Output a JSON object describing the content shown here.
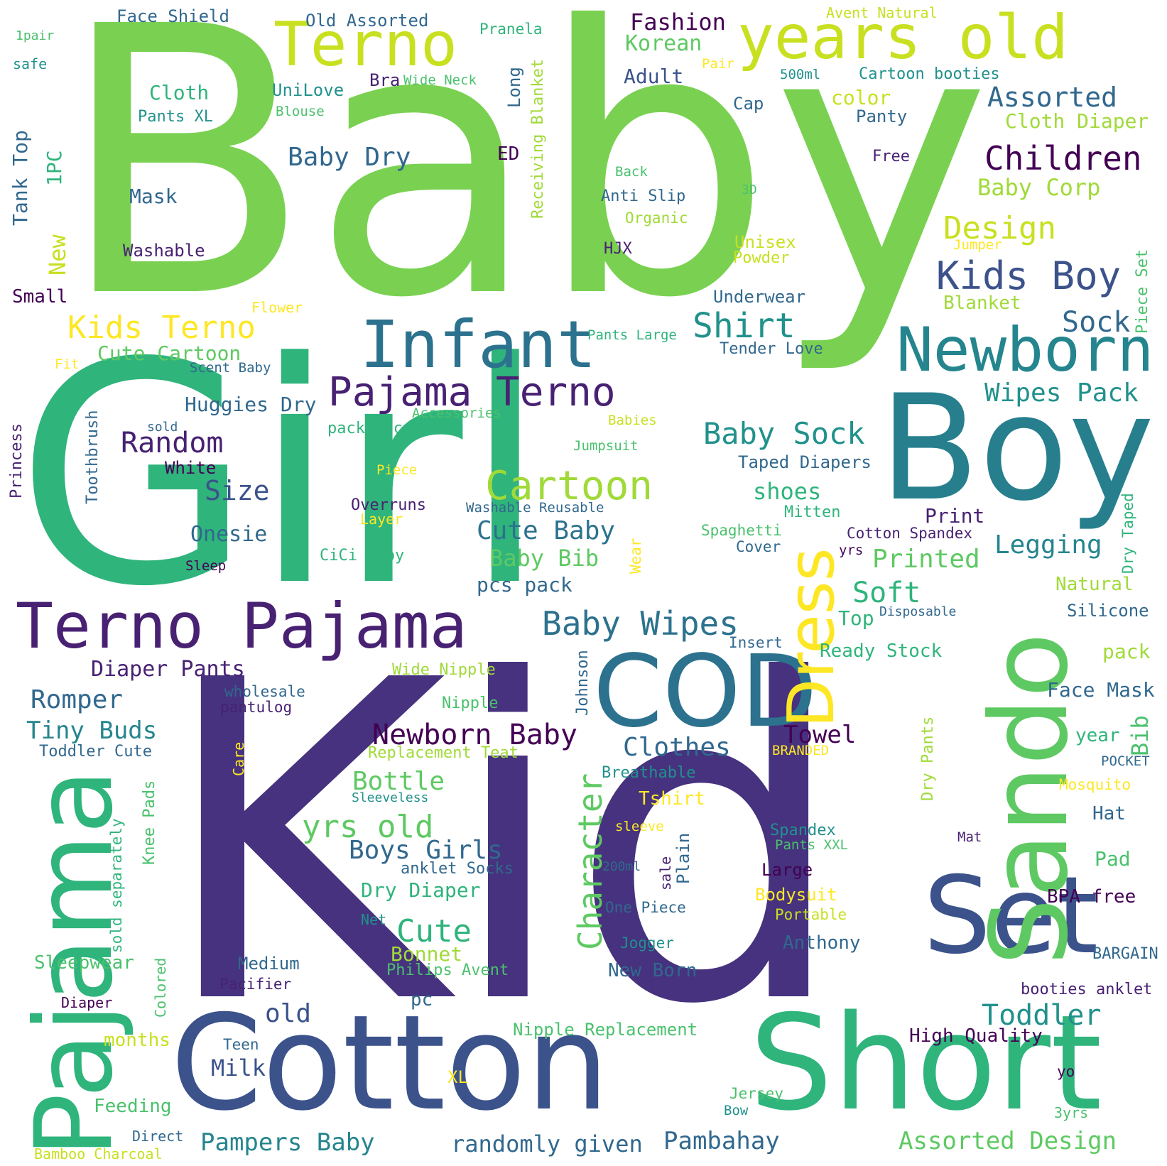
{
  "palette": {
    "purple": "#440154",
    "indigo": "#46327e",
    "blue": "#365c8d",
    "teal": "#277f8e",
    "green": "#1fa187",
    "lime": "#4ac16d",
    "lightgreen": "#a0da39",
    "yellow": "#fde725",
    "limeyellow": "#c8e020"
  },
  "words": {
    "baby": "Baby",
    "girl": "Girl",
    "kid": "Kid",
    "cotton": "Cotton",
    "short": "Short",
    "boy": "Boy",
    "sando": "Sando",
    "set": "Set",
    "cod": "COD",
    "dress": "Dress",
    "pajama": "Pajama",
    "terno_pajama": "Terno Pajama",
    "infant": "Infant",
    "newborn": "Newborn",
    "years_old": "years old",
    "terno": "Terno",
    "pajama_terno": "Pajama Terno",
    "kids_terno": "Kids Terno",
    "kids_boy": "Kids Boy",
    "cartoon": "Cartoon",
    "children": "Children",
    "shirt": "Shirt",
    "baby_wipes": "Baby Wipes",
    "design": "Design",
    "baby_sock": "Baby Sock",
    "assorted": "Assorted",
    "toddler": "Toddler",
    "cute": "Cute",
    "cute_baby": "Cute Baby",
    "newborn_baby": "Newborn Baby",
    "yrs_old": "yrs old",
    "random": "Random",
    "size": "Size",
    "baby_dry": "Baby Dry",
    "wipes_pack": "Wipes Pack",
    "clothes": "Clothes",
    "boys_girls": "Boys Girls",
    "romper": "Romper",
    "tiny_buds": "Tiny Buds",
    "character": "Character",
    "sock": "Sock",
    "pambahay": "Pambahay",
    "pampers_baby": "Pampers Baby",
    "assorted_design": "Assorted Design",
    "randomly_given": "randomly given",
    "legging": "Legging",
    "printed": "Printed",
    "soft": "Soft",
    "bottle": "Bottle",
    "towel": "Towel",
    "baby_bib": "Baby Bib",
    "old": "old",
    "milk": "Milk",
    "onesie": "Onesie",
    "shoes": "shoes",
    "diaper_pants": "Diaper Pants",
    "huggies_dry": "Huggies Dry",
    "cute_cartoon": "Cute Cartoon",
    "baby_corp": "Baby Corp",
    "cloth_diaper": "Cloth Diaper",
    "fashion": "Fashion",
    "korean": "Korean",
    "adult": "Adult",
    "color": "color",
    "panty": "Panty",
    "cloth": "Cloth",
    "pants_xl": "Pants XL",
    "unilove": "UniLove",
    "blouse": "Blouse",
    "face_shield": "Face Shield",
    "old_assorted": "Old Assorted",
    "pranela": "Pranela",
    "avent_natural": "Avent Natural",
    "pair": "Pair",
    "ml500": "500ml",
    "cartoon_booties": "Cartoon booties",
    "bra": "Bra",
    "wide_neck": "Wide Neck",
    "long": "Long",
    "receiving_blanket": "Receiving Blanket",
    "cap": "Cap",
    "ed": "ED",
    "free": "Free",
    "tank_top": "Tank Top",
    "one_pc": "1PC",
    "mask": "Mask",
    "back": "Back",
    "anti_slip": "Anti Slip",
    "organic": "Organic",
    "d3": "3D",
    "new": "New",
    "washable": "Washable",
    "hjx": "HJX",
    "unisex": "Unisex",
    "powder": "Powder",
    "jumper": "Jumper",
    "piece_set": "Piece Set",
    "small": "Small",
    "flower": "Flower",
    "underwear": "Underwear",
    "blanket": "Blanket",
    "pants_large": "Pants Large",
    "tender_love": "Tender Love",
    "fit": "Fit",
    "scent_baby": "Scent Baby",
    "accessories": "Accessories",
    "packs_pcs": "packs pcs",
    "babies": "Babies",
    "sold": "sold",
    "princess": "Princess",
    "toothbrush": "Toothbrush",
    "white": "White",
    "jumpsuit": "Jumpsuit",
    "piece": "Piece",
    "taped_diapers": "Taped Diapers",
    "overruns": "Overruns",
    "layer": "Layer",
    "washable_reusable": "Washable Reusable",
    "mitten": "Mitten",
    "print": "Print",
    "dry_taped": "Dry Taped",
    "spaghetti": "Spaghetti",
    "cotton_spandex": "Cotton Spandex",
    "cover": "Cover",
    "yrs": "yrs",
    "cici_baby": "CiCi Baby",
    "sleep": "Sleep",
    "wear": "Wear",
    "pcs_pack": "pcs pack",
    "natural": "Natural",
    "silicone": "Silicone",
    "top": "Top",
    "disposable": "Disposable",
    "insert": "Insert",
    "ready_stock": "Ready Stock",
    "pack": "pack",
    "face_mask": "Face Mask",
    "year": "year",
    "bib": "Bib",
    "pocket": "POCKET",
    "wide_nipple": "Wide Nipple",
    "wholesale": "wholesale",
    "pantulog": "pantulog",
    "johnson": "Johnson",
    "nipple": "Nipple",
    "dry_pants": "Dry Pants",
    "branded": "BRANDED",
    "toddler_cute": "Toddler Cute",
    "replacement_teat": "Replacement Teat",
    "care": "Care",
    "breathable": "Breathable",
    "mosquito": "Mosquito",
    "sleeveless": "Sleeveless",
    "tshirt": "Tshirt",
    "hat": "Hat",
    "knee_pads": "Knee Pads",
    "sleeve": "sleeve",
    "spandex": "Spandex",
    "pants_xxl": "Pants XXL",
    "mat": "Mat",
    "anklet_socks": "anklet Socks",
    "ml200": "200ml",
    "sale": "sale",
    "plain": "Plain",
    "large": "Large",
    "pad": "Pad",
    "dry_diaper": "Dry Diaper",
    "sold_separately": "sold separately",
    "bodysuit": "Bodysuit",
    "bpa_free": "BPA free",
    "portable": "Portable",
    "one_piece": "One Piece",
    "net": "Net",
    "jogger": "Jogger",
    "anthony": "Anthony",
    "bargain": "BARGAIN",
    "sleepwear": "Sleepwear",
    "medium": "Medium",
    "bonnet": "Bonnet",
    "colored": "Colored",
    "philips_avent": "Philips Avent",
    "new_born": "New Born",
    "booties_anklet": "booties anklet",
    "pacifier": "Pacifier",
    "diaper": "Diaper",
    "pc": "pc",
    "nipple_replacement": "Nipple Replacement",
    "high_quality": "High Quality",
    "months": "months",
    "teen": "Teen",
    "xl": "XL",
    "yo": "yo",
    "feeding": "Feeding",
    "jersey": "Jersey",
    "bow": "Bow",
    "yrs3": "3yrs",
    "direct": "Direct",
    "bamboo_charcoal": "Bamboo Charcoal",
    "one_pair": "1pair",
    "safe": "safe"
  }
}
